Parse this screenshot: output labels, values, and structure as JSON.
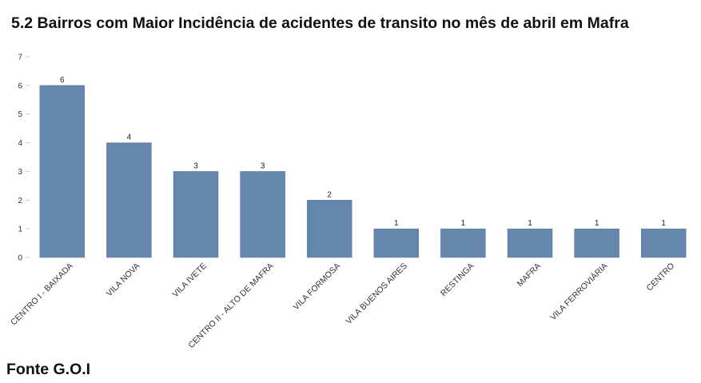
{
  "title": "5.2 Bairros com Maior Incidência de acidentes de transito no mês de abril em Mafra",
  "footer": "Fonte G.O.I",
  "chart_data": {
    "type": "bar",
    "categories": [
      "CENTRO I - BAIXADA",
      "VILA NOVA",
      "VILA IVETE",
      "CENTRO II - ALTO DE MAFRA",
      "VILA FORMOSA",
      "VILA BUENOS AIRES",
      "RESTINGA",
      "MAFRA",
      "VILA FERROVIÁRIA",
      "CENTRO"
    ],
    "values": [
      6,
      4,
      3,
      3,
      2,
      1,
      1,
      1,
      1,
      1
    ],
    "data_labels": [
      "6",
      "4",
      "3",
      "3",
      "2",
      "1",
      "1",
      "1",
      "1",
      "1"
    ],
    "y_ticks": [
      "0",
      "1",
      "2",
      "3",
      "4",
      "5",
      "6",
      "7"
    ],
    "ylim": [
      0,
      7
    ],
    "grid": false,
    "legend": "none",
    "bar_color": "#6586ad"
  }
}
